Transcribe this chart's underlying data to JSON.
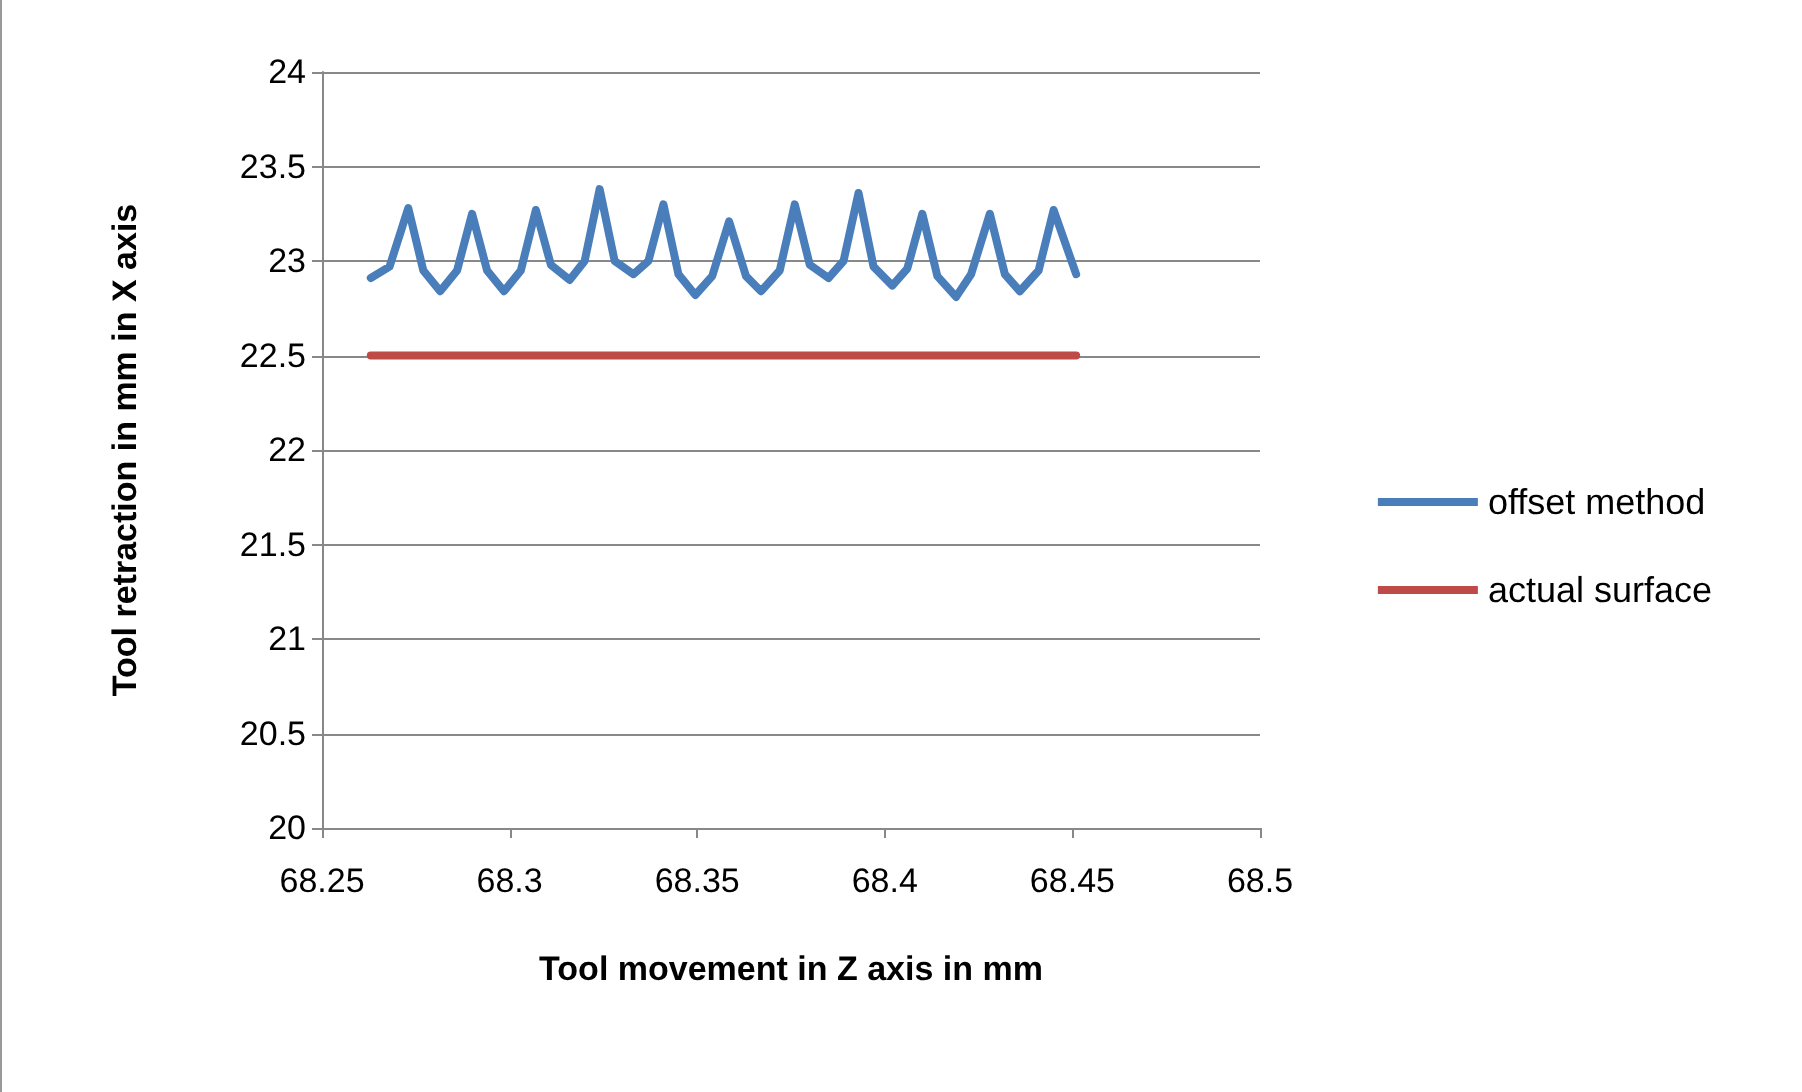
{
  "chart_data": {
    "type": "line",
    "xlabel": "Tool movement in Z axis in mm",
    "ylabel": "Tool retraction in mm in X axis",
    "xlim": [
      68.25,
      68.5
    ],
    "xticks": [
      68.25,
      68.3,
      68.35,
      68.4,
      68.45,
      68.5
    ],
    "ylim": [
      20,
      24
    ],
    "yticks": [
      20,
      20.5,
      21,
      21.5,
      22,
      22.5,
      23,
      23.5,
      24
    ],
    "grid": "y",
    "legend": "right",
    "marker": "none",
    "line_style": "solid",
    "series": [
      {
        "name": "offset method",
        "color": "#4a7ebb",
        "x": [
          68.263,
          68.268,
          68.273,
          68.277,
          68.2815,
          68.286,
          68.29,
          68.294,
          68.2985,
          68.303,
          68.307,
          68.311,
          68.316,
          68.32,
          68.324,
          68.328,
          68.333,
          68.337,
          68.341,
          68.345,
          68.3495,
          68.354,
          68.3585,
          68.363,
          68.367,
          68.372,
          68.376,
          68.38,
          68.385,
          68.389,
          68.393,
          68.397,
          68.402,
          68.406,
          68.41,
          68.414,
          68.419,
          68.423,
          68.428,
          68.432,
          68.436,
          68.441,
          68.445,
          68.451
        ],
        "values": [
          22.91,
          22.97,
          23.28,
          22.95,
          22.84,
          22.95,
          23.25,
          22.95,
          22.84,
          22.95,
          23.27,
          22.98,
          22.9,
          23.0,
          23.38,
          23.0,
          22.93,
          23.0,
          23.3,
          22.93,
          22.82,
          22.92,
          23.21,
          22.92,
          22.84,
          22.95,
          23.3,
          22.98,
          22.91,
          23.0,
          23.36,
          22.97,
          22.87,
          22.96,
          23.25,
          22.92,
          22.81,
          22.93,
          23.25,
          22.93,
          22.84,
          22.95,
          23.27,
          22.93
        ]
      },
      {
        "name": "actual surface",
        "color": "#be4b48",
        "x": [
          68.263,
          68.451
        ],
        "values": [
          22.5,
          22.5
        ]
      }
    ]
  }
}
